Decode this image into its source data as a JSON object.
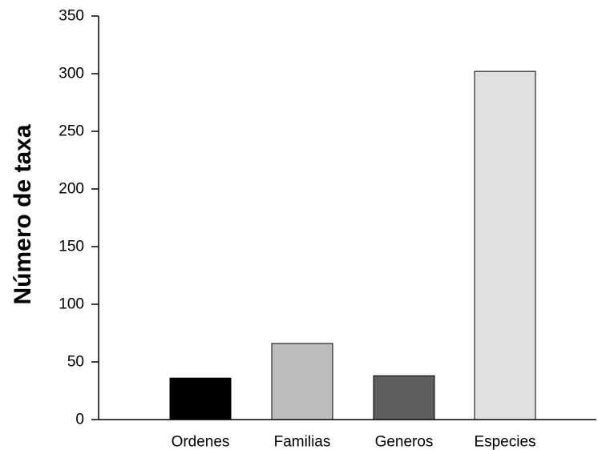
{
  "chart_data": {
    "type": "bar",
    "title": "",
    "xlabel": "",
    "ylabel": "Número de taxa",
    "categories": [
      "Ordenes",
      "Familias",
      "Generos",
      "Especies"
    ],
    "values": [
      36,
      66,
      38,
      302
    ],
    "colors": [
      "#000000",
      "#bdbdbd",
      "#5f5f5f",
      "#e0e0e0"
    ],
    "ylim": [
      0,
      350
    ],
    "yticks": [
      0,
      50,
      100,
      150,
      200,
      250,
      300,
      350
    ],
    "ytick_labels": [
      "0",
      "50",
      "100",
      "150",
      "200",
      "250",
      "300",
      "350"
    ],
    "grid": false,
    "legend": "none"
  }
}
